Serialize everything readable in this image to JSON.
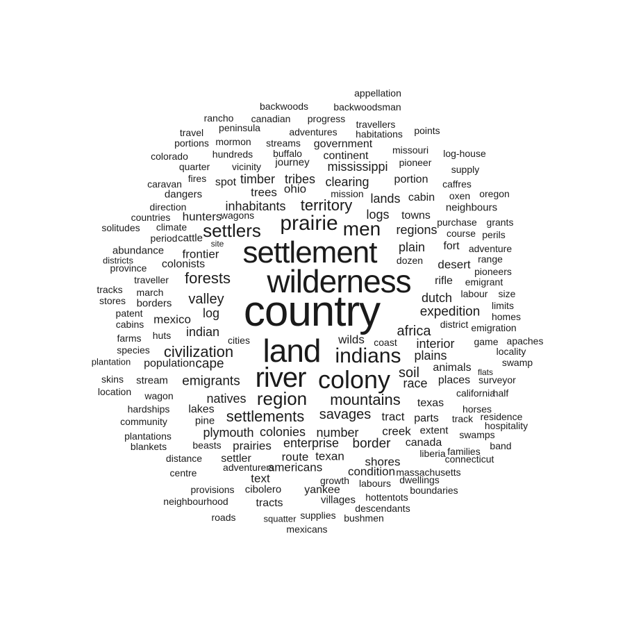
{
  "text_color": "#1a1a1a",
  "background": "#ffffff",
  "words": [
    {
      "text": "appellation",
      "weight": 1
    },
    {
      "text": "backwoods",
      "weight": 1
    },
    {
      "text": "backwoodsman",
      "weight": 1
    },
    {
      "text": "rancho",
      "weight": 1
    },
    {
      "text": "canadian",
      "weight": 1
    },
    {
      "text": "progress",
      "weight": 1
    },
    {
      "text": "travellers",
      "weight": 1
    },
    {
      "text": "travel",
      "weight": 1
    },
    {
      "text": "peninsula",
      "weight": 1
    },
    {
      "text": "adventures",
      "weight": 1
    },
    {
      "text": "habitations",
      "weight": 1
    },
    {
      "text": "points",
      "weight": 1
    },
    {
      "text": "portions",
      "weight": 1
    },
    {
      "text": "mormon",
      "weight": 1
    },
    {
      "text": "streams",
      "weight": 1
    },
    {
      "text": "government",
      "weight": 1
    },
    {
      "text": "colorado",
      "weight": 1
    },
    {
      "text": "hundreds",
      "weight": 1
    },
    {
      "text": "buffalo",
      "weight": 1
    },
    {
      "text": "continent",
      "weight": 1
    },
    {
      "text": "missouri",
      "weight": 1
    },
    {
      "text": "log-house",
      "weight": 1
    },
    {
      "text": "quarter",
      "weight": 1
    },
    {
      "text": "vicinity",
      "weight": 1
    },
    {
      "text": "journey",
      "weight": 1
    },
    {
      "text": "mississippi",
      "weight": 2
    },
    {
      "text": "pioneer",
      "weight": 1
    },
    {
      "text": "supply",
      "weight": 1
    },
    {
      "text": "caravan",
      "weight": 1
    },
    {
      "text": "fires",
      "weight": 1
    },
    {
      "text": "spot",
      "weight": 1
    },
    {
      "text": "timber",
      "weight": 2
    },
    {
      "text": "tribes",
      "weight": 2
    },
    {
      "text": "clearing",
      "weight": 2
    },
    {
      "text": "portion",
      "weight": 1
    },
    {
      "text": "caffres",
      "weight": 1
    },
    {
      "text": "dangers",
      "weight": 1
    },
    {
      "text": "trees",
      "weight": 1
    },
    {
      "text": "ohio",
      "weight": 1
    },
    {
      "text": "mission",
      "weight": 1
    },
    {
      "text": "lands",
      "weight": 2
    },
    {
      "text": "cabin",
      "weight": 1
    },
    {
      "text": "oxen",
      "weight": 1
    },
    {
      "text": "oregon",
      "weight": 1
    },
    {
      "text": "direction",
      "weight": 1
    },
    {
      "text": "inhabitants",
      "weight": 2
    },
    {
      "text": "territory",
      "weight": 3
    },
    {
      "text": "neighbours",
      "weight": 1
    },
    {
      "text": "countries",
      "weight": 1
    },
    {
      "text": "hunters",
      "weight": 2
    },
    {
      "text": "wagons",
      "weight": 1
    },
    {
      "text": "logs",
      "weight": 2
    },
    {
      "text": "towns",
      "weight": 1
    },
    {
      "text": "solitudes",
      "weight": 1
    },
    {
      "text": "climate",
      "weight": 1
    },
    {
      "text": "prairie",
      "weight": 3
    },
    {
      "text": "purchase",
      "weight": 1
    },
    {
      "text": "grants",
      "weight": 1
    },
    {
      "text": "settlers",
      "weight": 3
    },
    {
      "text": "men",
      "weight": 3
    },
    {
      "text": "regions",
      "weight": 2
    },
    {
      "text": "course",
      "weight": 1
    },
    {
      "text": "perils",
      "weight": 1
    },
    {
      "text": "period",
      "weight": 1
    },
    {
      "text": "cattle",
      "weight": 1
    },
    {
      "text": "site",
      "weight": 1
    },
    {
      "text": "fort",
      "weight": 1
    },
    {
      "text": "adventure",
      "weight": 1
    },
    {
      "text": "abundance",
      "weight": 1
    },
    {
      "text": "settlement",
      "weight": 6
    },
    {
      "text": "plain",
      "weight": 2
    },
    {
      "text": "districts",
      "weight": 1
    },
    {
      "text": "frontier",
      "weight": 2
    },
    {
      "text": "dozen",
      "weight": 1
    },
    {
      "text": "range",
      "weight": 1
    },
    {
      "text": "province",
      "weight": 1
    },
    {
      "text": "colonists",
      "weight": 1
    },
    {
      "text": "desert",
      "weight": 2
    },
    {
      "text": "pioneers",
      "weight": 1
    },
    {
      "text": "wilderness",
      "weight": 6
    },
    {
      "text": "traveller",
      "weight": 1
    },
    {
      "text": "forests",
      "weight": 3
    },
    {
      "text": "rifle",
      "weight": 1
    },
    {
      "text": "emigrant",
      "weight": 1
    },
    {
      "text": "tracks",
      "weight": 1
    },
    {
      "text": "march",
      "weight": 1
    },
    {
      "text": "dutch",
      "weight": 2
    },
    {
      "text": "labour",
      "weight": 1
    },
    {
      "text": "size",
      "weight": 1
    },
    {
      "text": "stores",
      "weight": 1
    },
    {
      "text": "borders",
      "weight": 1
    },
    {
      "text": "valley",
      "weight": 2
    },
    {
      "text": "limits",
      "weight": 1
    },
    {
      "text": "patent",
      "weight": 1
    },
    {
      "text": "country",
      "weight": 8
    },
    {
      "text": "log",
      "weight": 2
    },
    {
      "text": "expedition",
      "weight": 2
    },
    {
      "text": "homes",
      "weight": 1
    },
    {
      "text": "cabins",
      "weight": 1
    },
    {
      "text": "mexico",
      "weight": 1
    },
    {
      "text": "district",
      "weight": 1
    },
    {
      "text": "emigration",
      "weight": 1
    },
    {
      "text": "farms",
      "weight": 1
    },
    {
      "text": "huts",
      "weight": 1
    },
    {
      "text": "indian",
      "weight": 2
    },
    {
      "text": "africa",
      "weight": 2
    },
    {
      "text": "land",
      "weight": 7
    },
    {
      "text": "game",
      "weight": 1
    },
    {
      "text": "apaches",
      "weight": 1
    },
    {
      "text": "cities",
      "weight": 1
    },
    {
      "text": "wilds",
      "weight": 1
    },
    {
      "text": "coast",
      "weight": 1
    },
    {
      "text": "interior",
      "weight": 2
    },
    {
      "text": "locality",
      "weight": 1
    },
    {
      "text": "species",
      "weight": 1
    },
    {
      "text": "civilization",
      "weight": 3
    },
    {
      "text": "indians",
      "weight": 4
    },
    {
      "text": "plains",
      "weight": 2
    },
    {
      "text": "swamp",
      "weight": 1
    },
    {
      "text": "plantation",
      "weight": 1
    },
    {
      "text": "population",
      "weight": 1
    },
    {
      "text": "cape",
      "weight": 2
    },
    {
      "text": "animals",
      "weight": 1
    },
    {
      "text": "flats",
      "weight": 1
    },
    {
      "text": "skins",
      "weight": 1
    },
    {
      "text": "stream",
      "weight": 1
    },
    {
      "text": "emigrants",
      "weight": 2
    },
    {
      "text": "river",
      "weight": 6
    },
    {
      "text": "colony",
      "weight": 5
    },
    {
      "text": "soil",
      "weight": 2
    },
    {
      "text": "places",
      "weight": 1
    },
    {
      "text": "surveyor",
      "weight": 1
    },
    {
      "text": "location",
      "weight": 1
    },
    {
      "text": "race",
      "weight": 2
    },
    {
      "text": "california",
      "weight": 1
    },
    {
      "text": "half",
      "weight": 1
    },
    {
      "text": "wagon",
      "weight": 1
    },
    {
      "text": "region",
      "weight": 3
    },
    {
      "text": "natives",
      "weight": 2
    },
    {
      "text": "mountains",
      "weight": 3
    },
    {
      "text": "texas",
      "weight": 1
    },
    {
      "text": "hardships",
      "weight": 1
    },
    {
      "text": "lakes",
      "weight": 1
    },
    {
      "text": "horses",
      "weight": 1
    },
    {
      "text": "residence",
      "weight": 1
    },
    {
      "text": "community",
      "weight": 1
    },
    {
      "text": "pine",
      "weight": 1
    },
    {
      "text": "settlements",
      "weight": 3
    },
    {
      "text": "savages",
      "weight": 2
    },
    {
      "text": "tract",
      "weight": 2
    },
    {
      "text": "parts",
      "weight": 1
    },
    {
      "text": "track",
      "weight": 1
    },
    {
      "text": "hospitality",
      "weight": 1
    },
    {
      "text": "plantations",
      "weight": 1
    },
    {
      "text": "plymouth",
      "weight": 2
    },
    {
      "text": "colonies",
      "weight": 2
    },
    {
      "text": "number",
      "weight": 2
    },
    {
      "text": "creek",
      "weight": 1
    },
    {
      "text": "extent",
      "weight": 1
    },
    {
      "text": "swamps",
      "weight": 1
    },
    {
      "text": "blankets",
      "weight": 1
    },
    {
      "text": "beasts",
      "weight": 1
    },
    {
      "text": "prairies",
      "weight": 2
    },
    {
      "text": "enterprise",
      "weight": 2
    },
    {
      "text": "border",
      "weight": 2
    },
    {
      "text": "canada",
      "weight": 1
    },
    {
      "text": "band",
      "weight": 1
    },
    {
      "text": "distance",
      "weight": 1
    },
    {
      "text": "settler",
      "weight": 2
    },
    {
      "text": "route",
      "weight": 2
    },
    {
      "text": "texan",
      "weight": 1
    },
    {
      "text": "liberia",
      "weight": 1
    },
    {
      "text": "families",
      "weight": 1
    },
    {
      "text": "connecticut",
      "weight": 2
    },
    {
      "text": "shores",
      "weight": 2
    },
    {
      "text": "americans",
      "weight": 1
    },
    {
      "text": "centre",
      "weight": 1
    },
    {
      "text": "adventurers",
      "weight": 2
    },
    {
      "text": "condition",
      "weight": 1
    },
    {
      "text": "massachusetts",
      "weight": 2
    },
    {
      "text": "text",
      "weight": 1
    },
    {
      "text": "growth",
      "weight": 1
    },
    {
      "text": "labours",
      "weight": 1
    },
    {
      "text": "dwellings",
      "weight": 1
    },
    {
      "text": "provisions",
      "weight": 1
    },
    {
      "text": "cibolero",
      "weight": 1
    },
    {
      "text": "yankee",
      "weight": 1
    },
    {
      "text": "boundaries",
      "weight": 1
    },
    {
      "text": "neighbourhood",
      "weight": 1
    },
    {
      "text": "tracts",
      "weight": 1
    },
    {
      "text": "villages",
      "weight": 1
    },
    {
      "text": "hottentots",
      "weight": 1
    },
    {
      "text": "descendants",
      "weight": 1
    },
    {
      "text": "roads",
      "weight": 1
    },
    {
      "text": "squatter",
      "weight": 1
    },
    {
      "text": "supplies",
      "weight": 1
    },
    {
      "text": "bushmen",
      "weight": 1
    },
    {
      "text": "mexicans",
      "weight": 1
    }
  ]
}
